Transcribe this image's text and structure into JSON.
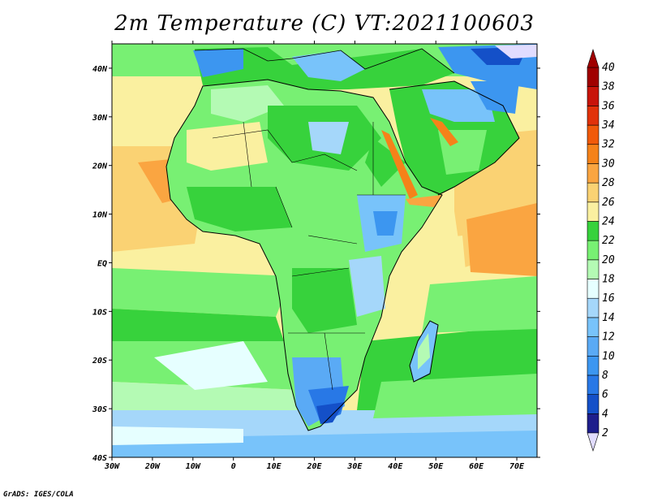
{
  "title": "2m Temperature (C) VT:2021100603",
  "credit": "GrADS: IGES/COLA",
  "map": {
    "region": "Africa",
    "projection": "latlon",
    "lon_range": [
      -30,
      75
    ],
    "lat_range": [
      -40,
      45
    ],
    "lat_ticks": [
      {
        "value": 40,
        "label": "40N"
      },
      {
        "value": 30,
        "label": "30N"
      },
      {
        "value": 20,
        "label": "20N"
      },
      {
        "value": 10,
        "label": "10N"
      },
      {
        "value": 0,
        "label": "EQ"
      },
      {
        "value": -10,
        "label": "10S"
      },
      {
        "value": -20,
        "label": "20S"
      },
      {
        "value": -30,
        "label": "30S"
      },
      {
        "value": -40,
        "label": "40S"
      }
    ],
    "lon_ticks": [
      {
        "value": -30,
        "label": "30W"
      },
      {
        "value": -20,
        "label": "20W"
      },
      {
        "value": -10,
        "label": "10W"
      },
      {
        "value": 0,
        "label": "0"
      },
      {
        "value": 10,
        "label": "10E"
      },
      {
        "value": 20,
        "label": "20E"
      },
      {
        "value": 30,
        "label": "30E"
      },
      {
        "value": 40,
        "label": "40E"
      },
      {
        "value": 50,
        "label": "50E"
      },
      {
        "value": 60,
        "label": "60E"
      },
      {
        "value": 70,
        "label": "70E"
      }
    ]
  },
  "colorbar": {
    "levels": [
      2,
      4,
      6,
      8,
      10,
      12,
      14,
      16,
      18,
      20,
      22,
      24,
      26,
      28,
      30,
      32,
      34,
      36,
      38,
      40
    ],
    "colors": [
      "#1e1e8c",
      "#1450c8",
      "#2878e6",
      "#3c96f0",
      "#5aaaf5",
      "#78c3fa",
      "#a5d7fa",
      "#e6ffff",
      "#b4fab4",
      "#78f073",
      "#37d23c",
      "#faf0a0",
      "#fad273",
      "#faa541",
      "#f58219",
      "#f05a0a",
      "#e1320a",
      "#c8140a",
      "#a00000"
    ],
    "under_color": "#e1dcff",
    "over_color": "#a00000"
  }
}
